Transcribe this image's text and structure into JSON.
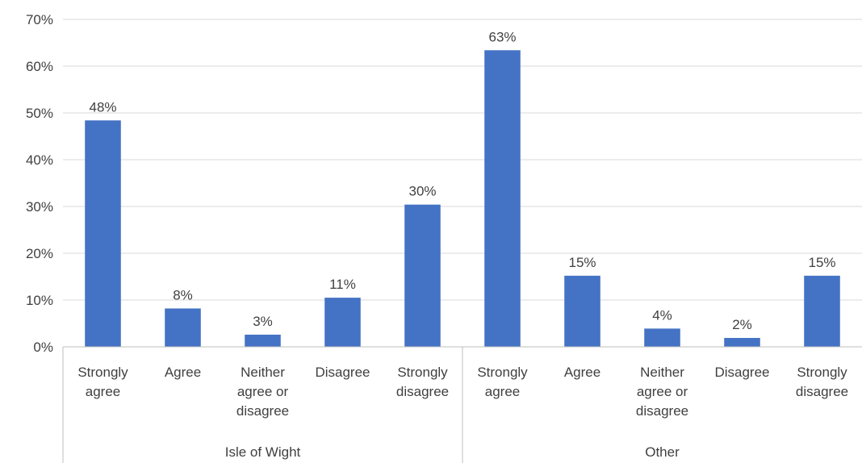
{
  "chart_data": {
    "type": "bar",
    "y_ticks": [
      "0%",
      "10%",
      "20%",
      "30%",
      "40%",
      "50%",
      "60%",
      "70%"
    ],
    "ylim": [
      0,
      70
    ],
    "grid": true,
    "color": "#4472C4",
    "groups": [
      {
        "name": "Isle of Wight",
        "bars": [
          {
            "category": [
              "Strongly",
              "agree"
            ],
            "value": 48.4,
            "label": "48%"
          },
          {
            "category": [
              "Agree"
            ],
            "value": 8.2,
            "label": "8%"
          },
          {
            "category": [
              "Neither",
              "agree or",
              "disagree"
            ],
            "value": 2.6,
            "label": "3%"
          },
          {
            "category": [
              "Disagree"
            ],
            "value": 10.5,
            "label": "11%"
          },
          {
            "category": [
              "Strongly",
              "disagree"
            ],
            "value": 30.4,
            "label": "30%"
          }
        ]
      },
      {
        "name": "Other",
        "bars": [
          {
            "category": [
              "Strongly",
              "agree"
            ],
            "value": 63.4,
            "label": "63%"
          },
          {
            "category": [
              "Agree"
            ],
            "value": 15.2,
            "label": "15%"
          },
          {
            "category": [
              "Neither",
              "agree or",
              "disagree"
            ],
            "value": 3.9,
            "label": "4%"
          },
          {
            "category": [
              "Disagree"
            ],
            "value": 1.9,
            "label": "2%"
          },
          {
            "category": [
              "Strongly",
              "disagree"
            ],
            "value": 15.2,
            "label": "15%"
          }
        ]
      }
    ]
  }
}
